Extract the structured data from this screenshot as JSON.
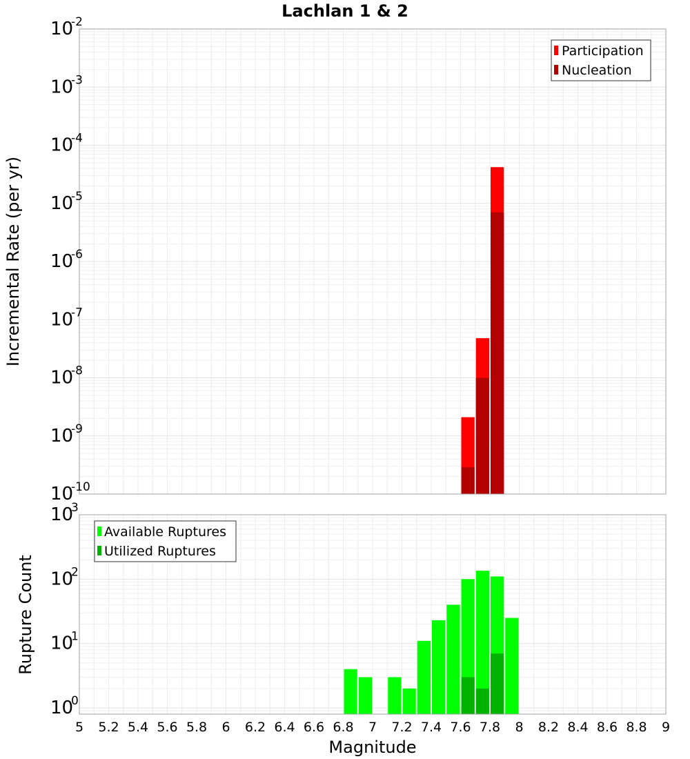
{
  "chart_data": [
    {
      "type": "bar",
      "title": "Lachlan 1 & 2",
      "xlabel": "",
      "ylabel": "Incremental Rate (per yr)",
      "yscale": "log",
      "ylim": [
        1e-10,
        0.01
      ],
      "xlim": [
        5,
        9
      ],
      "grid": true,
      "legend_position": "top-right",
      "y_tick_exponents": [
        "-10",
        "-9",
        "-8",
        "-7",
        "-6",
        "-5",
        "-4",
        "-3",
        "-2"
      ],
      "y_tick_base": "10",
      "series": [
        {
          "name": "Participation",
          "color": "#ff0000",
          "x": [
            7.65,
            7.75,
            7.85
          ],
          "values": [
            2.1e-09,
            4.8e-08,
            4.2e-05
          ]
        },
        {
          "name": "Nucleation",
          "color": "#b30000",
          "x": [
            7.65,
            7.75,
            7.85
          ],
          "values": [
            2.9e-10,
            1e-08,
            7e-06
          ]
        }
      ]
    },
    {
      "type": "bar",
      "title": "",
      "xlabel": "Magnitude",
      "ylabel": "Rupture Count",
      "yscale": "log",
      "ylim": [
        0.8,
        1000
      ],
      "xlim": [
        5,
        9
      ],
      "grid": true,
      "legend_position": "top-left",
      "y_tick_exponents": [
        "0",
        "1",
        "2",
        "3"
      ],
      "y_tick_base": "10",
      "x_ticks": [
        "5",
        "5.2",
        "5.4",
        "5.6",
        "5.8",
        "6",
        "6.2",
        "6.4",
        "6.6",
        "6.8",
        "7",
        "7.2",
        "7.4",
        "7.6",
        "7.8",
        "8",
        "8.2",
        "8.4",
        "8.6",
        "8.8",
        "9"
      ],
      "series": [
        {
          "name": "Available Ruptures",
          "color": "#00ff00",
          "x": [
            6.85,
            6.95,
            7.15,
            7.25,
            7.35,
            7.45,
            7.55,
            7.65,
            7.75,
            7.85,
            7.95
          ],
          "values": [
            4,
            3,
            3,
            2,
            11,
            23,
            40,
            100,
            135,
            110,
            25
          ]
        },
        {
          "name": "Utilized Ruptures",
          "color": "#00b300",
          "x": [
            7.65,
            7.75,
            7.85
          ],
          "values": [
            3,
            2,
            7
          ]
        }
      ]
    }
  ]
}
